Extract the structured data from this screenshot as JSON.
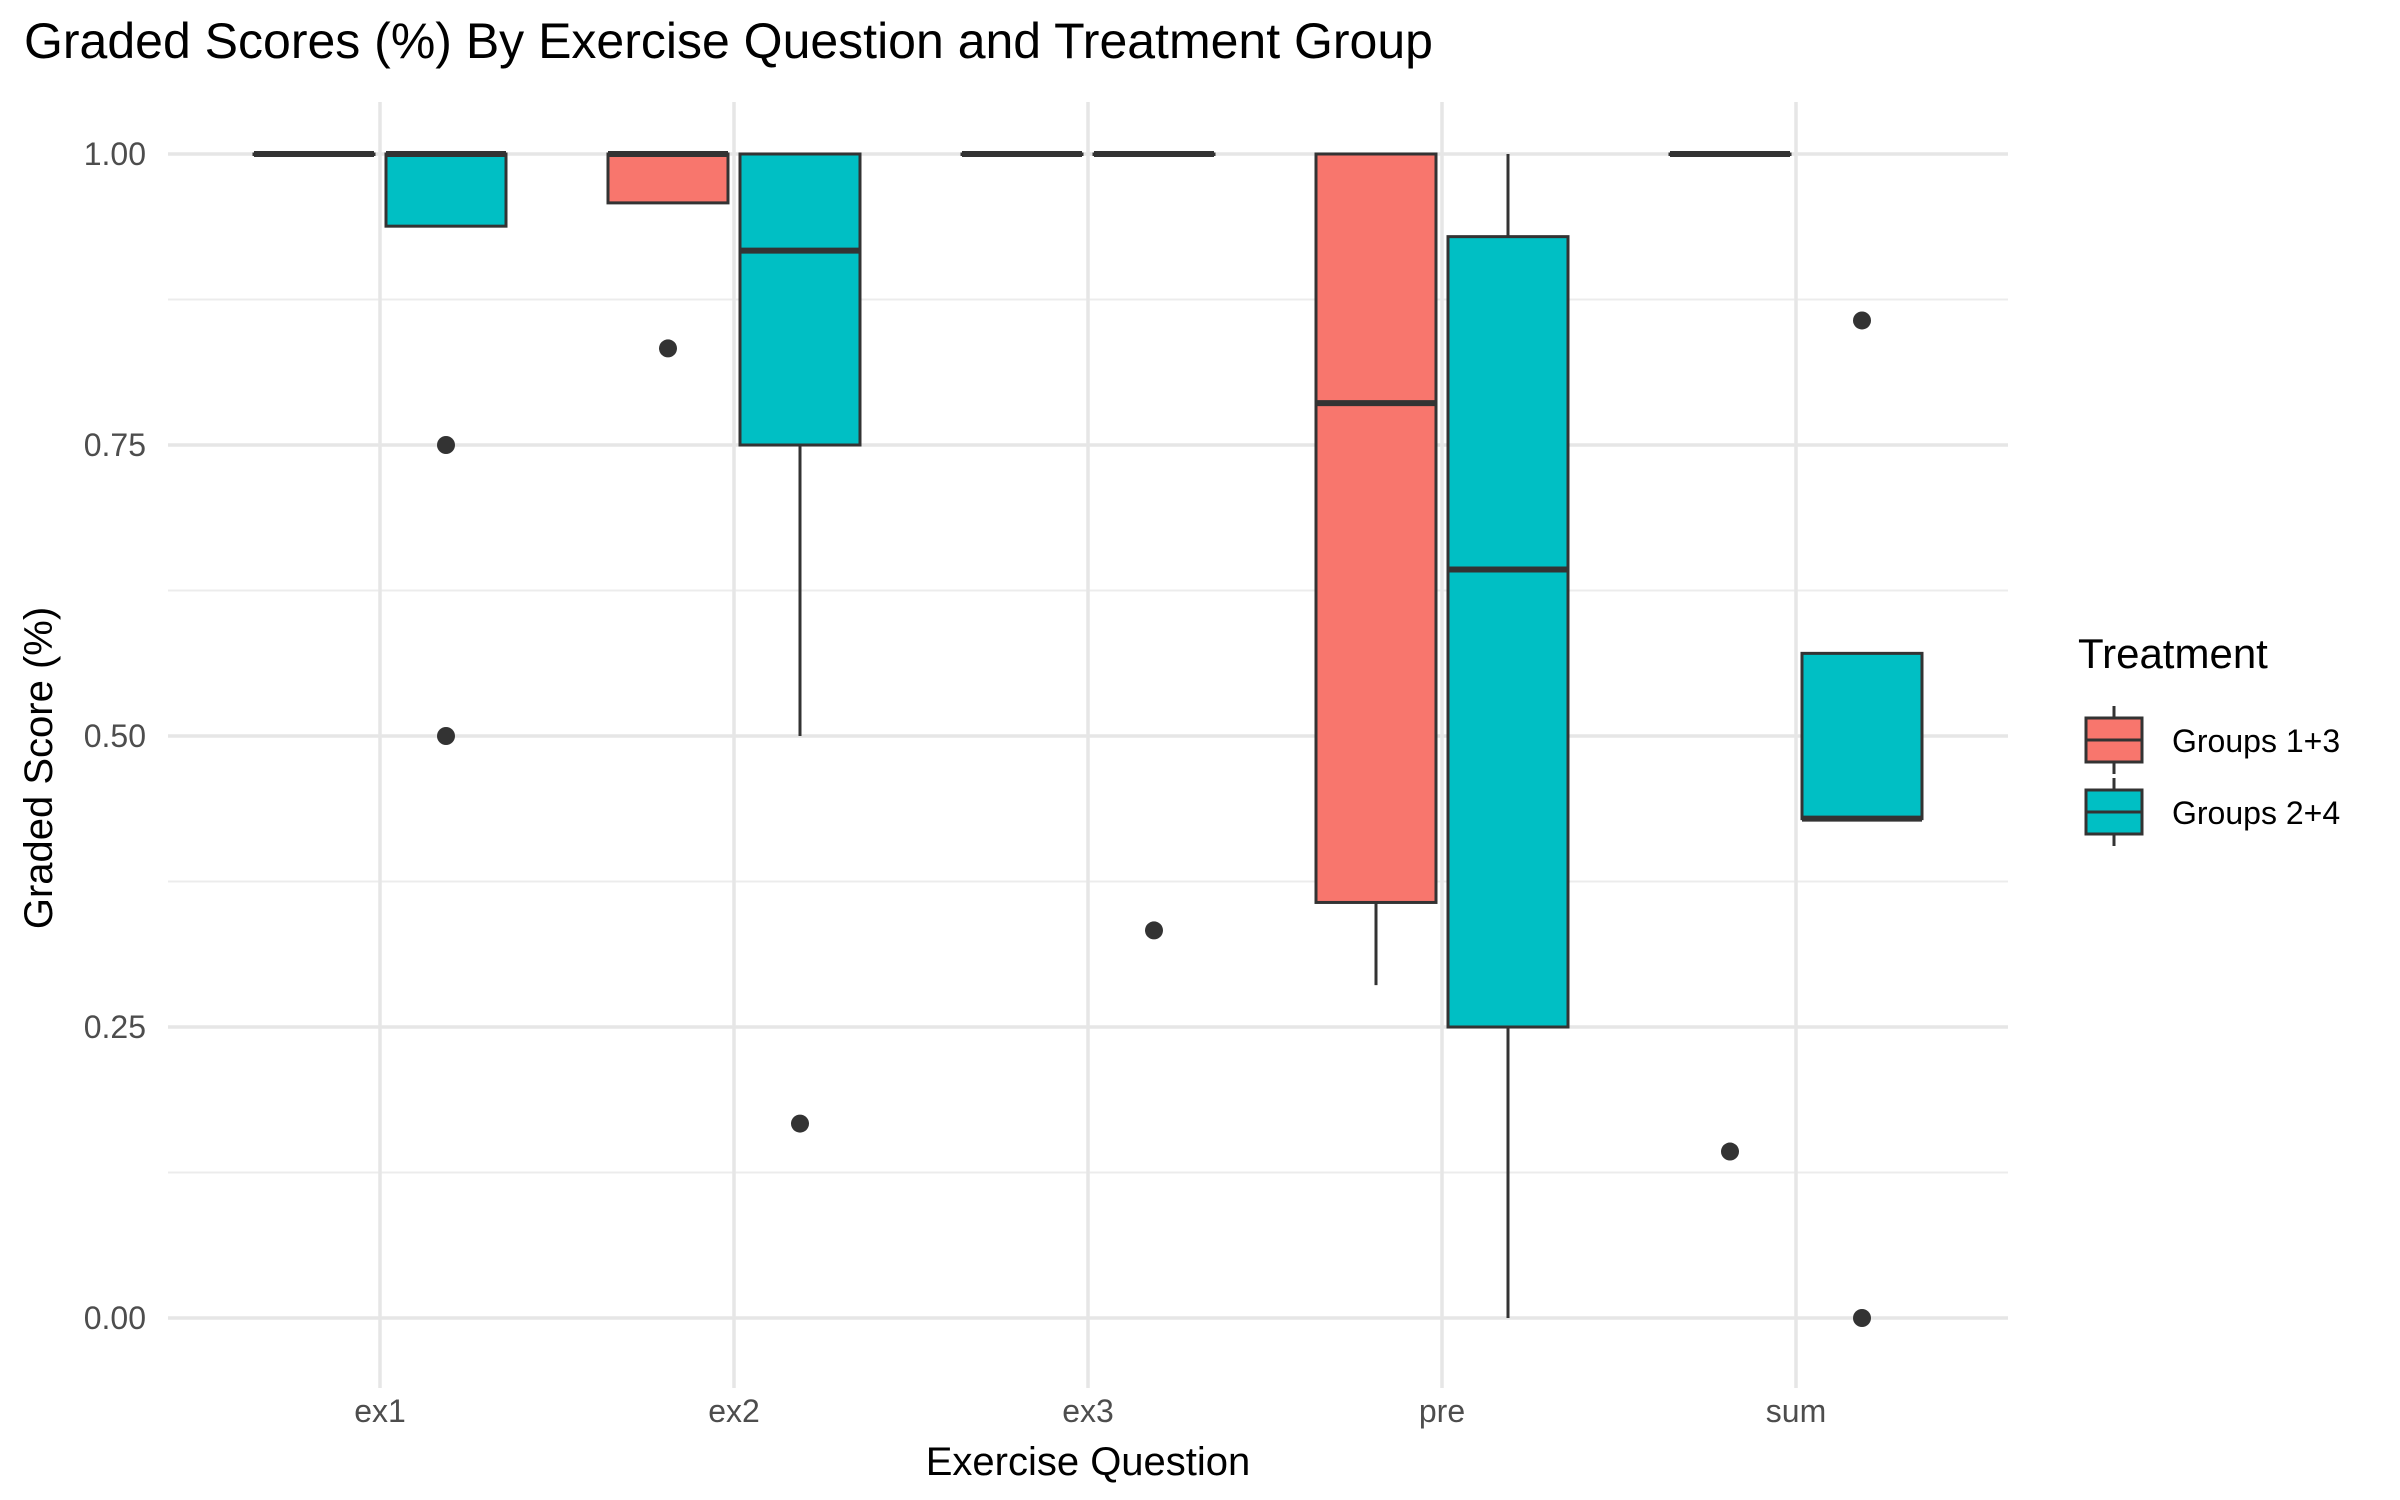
{
  "chart_data": {
    "type": "boxplot",
    "title": "Graded Scores (%) By Exercise Question and Treatment Group",
    "xlabel": "Exercise Question",
    "ylabel": "Graded Score (%)",
    "ylim": [
      -0.05,
      1.03
    ],
    "yticks": [
      0,
      0.25,
      0.5,
      0.75,
      1.0
    ],
    "ytick_labels": [
      "0.00",
      "0.25",
      "0.50",
      "0.75",
      "1.00"
    ],
    "grid": true,
    "categories": [
      "ex1",
      "ex2",
      "ex3",
      "pre",
      "sum"
    ],
    "legend": {
      "title": "Treatment",
      "position": "right"
    },
    "series": [
      {
        "name": "Groups 1+3",
        "color": "#F8766D",
        "boxes": [
          {
            "category": "ex1",
            "q1": 1.0,
            "median": 1.0,
            "q3": 1.0,
            "whisker_low": 1.0,
            "whisker_high": 1.0,
            "outliers": []
          },
          {
            "category": "ex2",
            "q1": 0.958,
            "median": 1.0,
            "q3": 1.0,
            "whisker_low": 0.958,
            "whisker_high": 1.0,
            "outliers": [
              0.833
            ]
          },
          {
            "category": "ex3",
            "q1": 1.0,
            "median": 1.0,
            "q3": 1.0,
            "whisker_low": 1.0,
            "whisker_high": 1.0,
            "outliers": []
          },
          {
            "category": "pre",
            "q1": 0.357,
            "median": 0.786,
            "q3": 1.0,
            "whisker_low": 0.286,
            "whisker_high": 1.0,
            "outliers": []
          },
          {
            "category": "sum",
            "q1": 1.0,
            "median": 1.0,
            "q3": 1.0,
            "whisker_low": 1.0,
            "whisker_high": 1.0,
            "outliers": [
              0.143
            ]
          }
        ]
      },
      {
        "name": "Groups 2+4",
        "color": "#00BFC4",
        "boxes": [
          {
            "category": "ex1",
            "q1": 0.938,
            "median": 1.0,
            "q3": 1.0,
            "whisker_low": 0.938,
            "whisker_high": 1.0,
            "outliers": [
              0.75,
              0.5
            ]
          },
          {
            "category": "ex2",
            "q1": 0.75,
            "median": 0.917,
            "q3": 1.0,
            "whisker_low": 0.5,
            "whisker_high": 1.0,
            "outliers": [
              0.167
            ]
          },
          {
            "category": "ex3",
            "q1": 1.0,
            "median": 1.0,
            "q3": 1.0,
            "whisker_low": 1.0,
            "whisker_high": 1.0,
            "outliers": [
              0.333
            ]
          },
          {
            "category": "pre",
            "q1": 0.25,
            "median": 0.643,
            "q3": 0.929,
            "whisker_low": 0.0,
            "whisker_high": 1.0,
            "outliers": []
          },
          {
            "category": "sum",
            "q1": 0.429,
            "median": 0.429,
            "q3": 0.571,
            "whisker_low": 0.429,
            "whisker_high": 0.571,
            "outliers": [
              0.857,
              0.0
            ]
          }
        ]
      }
    ]
  }
}
